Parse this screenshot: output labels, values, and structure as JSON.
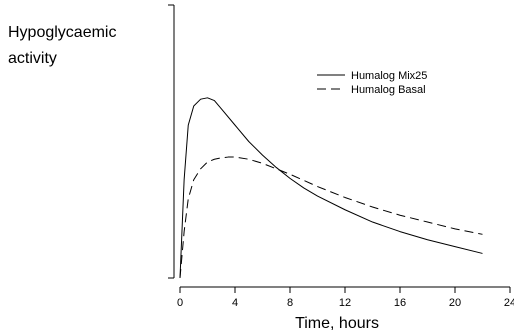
{
  "chart_data": {
    "type": "line",
    "ylabel_lines": [
      "Hypoglycaemic",
      "activity"
    ],
    "xlabel": "Time, hours",
    "xlim": [
      0,
      24
    ],
    "ylim": [
      0,
      1.0
    ],
    "x_ticks": [
      0,
      4,
      8,
      12,
      16,
      20,
      24
    ],
    "y_ticks_labeled": false,
    "legend_position": "upper-right",
    "series": [
      {
        "name": "Humalog Mix25",
        "style": "solid",
        "x": [
          0,
          0.3,
          0.6,
          1.0,
          1.5,
          2.0,
          2.5,
          3.0,
          4.0,
          5.0,
          6.0,
          7.0,
          8.0,
          9.0,
          10.0,
          12.0,
          14.0,
          16.0,
          18.0,
          20.0,
          22.0
        ],
        "y": [
          0.0,
          0.36,
          0.56,
          0.63,
          0.655,
          0.66,
          0.65,
          0.62,
          0.56,
          0.5,
          0.45,
          0.405,
          0.365,
          0.33,
          0.3,
          0.25,
          0.205,
          0.17,
          0.14,
          0.115,
          0.09
        ]
      },
      {
        "name": "Humalog Basal",
        "style": "dashed",
        "x": [
          0,
          0.3,
          0.6,
          1.0,
          1.5,
          2.0,
          2.5,
          3.0,
          3.5,
          4.0,
          5.0,
          6.0,
          7.0,
          8.0,
          10.0,
          12.0,
          14.0,
          16.0,
          18.0,
          20.0,
          22.0
        ],
        "y": [
          0.0,
          0.17,
          0.29,
          0.36,
          0.4,
          0.425,
          0.435,
          0.44,
          0.443,
          0.443,
          0.435,
          0.42,
          0.4,
          0.38,
          0.335,
          0.295,
          0.26,
          0.23,
          0.205,
          0.18,
          0.16
        ]
      }
    ]
  }
}
